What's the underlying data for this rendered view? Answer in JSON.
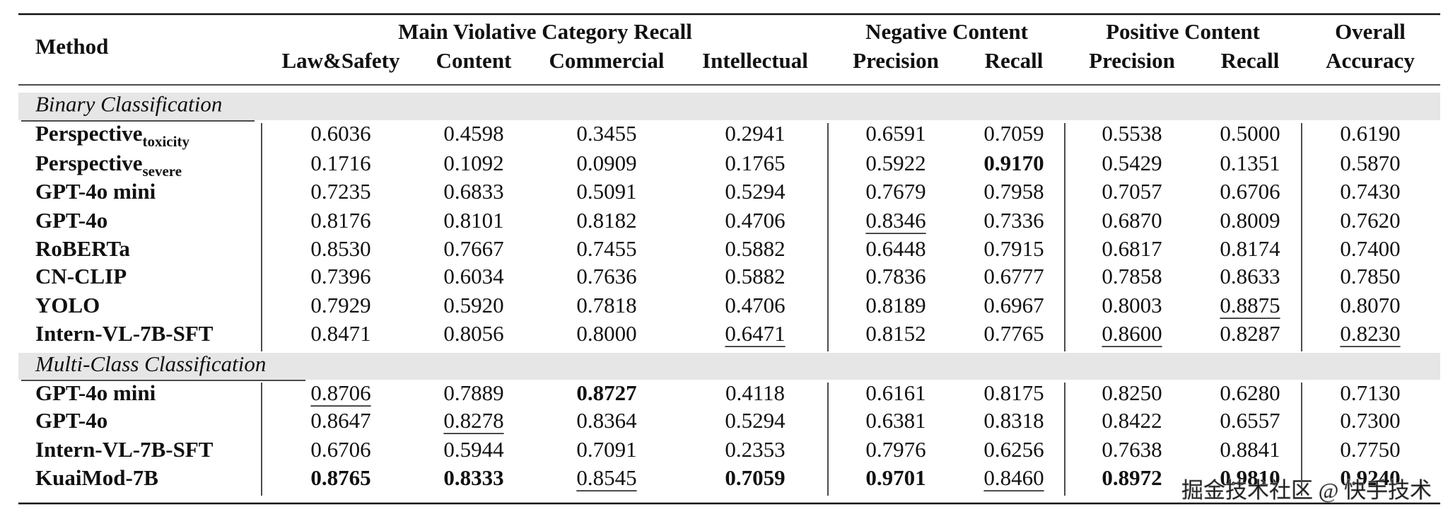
{
  "header": {
    "method": "Method",
    "groups": [
      {
        "label": "Main Violative Category Recall",
        "columns": [
          "Law&Safety",
          "Content",
          "Commercial",
          "Intellectual"
        ]
      },
      {
        "label": "Negative Content",
        "columns": [
          "Precision",
          "Recall"
        ]
      },
      {
        "label": "Positive Content",
        "columns": [
          "Precision",
          "Recall"
        ]
      },
      {
        "label": "Overall",
        "columns": [
          "Accuracy"
        ]
      }
    ]
  },
  "sections": [
    {
      "title": "Binary Classification",
      "rows": [
        {
          "method": "Perspective",
          "sub": "toxicity",
          "values": [
            "0.6036",
            "0.4598",
            "0.3455",
            "0.2941",
            "0.6591",
            "0.7059",
            "0.5538",
            "0.5000",
            "0.6190"
          ],
          "bold": [],
          "underline": []
        },
        {
          "method": "Perspective",
          "sub": "severe",
          "values": [
            "0.1716",
            "0.1092",
            "0.0909",
            "0.1765",
            "0.5922",
            "0.9170",
            "0.5429",
            "0.1351",
            "0.5870"
          ],
          "bold": [
            5
          ],
          "underline": []
        },
        {
          "method": "GPT-4o mini",
          "values": [
            "0.7235",
            "0.6833",
            "0.5091",
            "0.5294",
            "0.7679",
            "0.7958",
            "0.7057",
            "0.6706",
            "0.7430"
          ],
          "bold": [],
          "underline": []
        },
        {
          "method": "GPT-4o",
          "values": [
            "0.8176",
            "0.8101",
            "0.8182",
            "0.4706",
            "0.8346",
            "0.7336",
            "0.6870",
            "0.8009",
            "0.7620"
          ],
          "bold": [],
          "underline": [
            4
          ]
        },
        {
          "method": "RoBERTa",
          "values": [
            "0.8530",
            "0.7667",
            "0.7455",
            "0.5882",
            "0.6448",
            "0.7915",
            "0.6817",
            "0.8174",
            "0.7400"
          ],
          "bold": [],
          "underline": []
        },
        {
          "method": "CN-CLIP",
          "values": [
            "0.7396",
            "0.6034",
            "0.7636",
            "0.5882",
            "0.7836",
            "0.6777",
            "0.7858",
            "0.8633",
            "0.7850"
          ],
          "bold": [],
          "underline": []
        },
        {
          "method": "YOLO",
          "values": [
            "0.7929",
            "0.5920",
            "0.7818",
            "0.4706",
            "0.8189",
            "0.6967",
            "0.8003",
            "0.8875",
            "0.8070"
          ],
          "bold": [],
          "underline": [
            7
          ]
        },
        {
          "method": "Intern-VL-7B-SFT",
          "values": [
            "0.8471",
            "0.8056",
            "0.8000",
            "0.6471",
            "0.8152",
            "0.7765",
            "0.8600",
            "0.8287",
            "0.8230"
          ],
          "bold": [],
          "underline": [
            3,
            6,
            8
          ]
        }
      ]
    },
    {
      "title": "Multi-Class Classification",
      "rows": [
        {
          "method": "GPT-4o mini",
          "values": [
            "0.8706",
            "0.7889",
            "0.8727",
            "0.4118",
            "0.6161",
            "0.8175",
            "0.8250",
            "0.6280",
            "0.7130"
          ],
          "bold": [
            2
          ],
          "underline": [
            0
          ]
        },
        {
          "method": "GPT-4o",
          "values": [
            "0.8647",
            "0.8278",
            "0.8364",
            "0.5294",
            "0.6381",
            "0.8318",
            "0.8422",
            "0.6557",
            "0.7300"
          ],
          "bold": [],
          "underline": [
            1
          ]
        },
        {
          "method": "Intern-VL-7B-SFT",
          "values": [
            "0.6706",
            "0.5944",
            "0.7091",
            "0.2353",
            "0.7976",
            "0.6256",
            "0.7638",
            "0.8841",
            "0.7750"
          ],
          "bold": [],
          "underline": []
        },
        {
          "method": "KuaiMod-7B",
          "values": [
            "0.8765",
            "0.8333",
            "0.8545",
            "0.7059",
            "0.9701",
            "0.8460",
            "0.8972",
            "0.9810",
            "0.9240"
          ],
          "bold": [
            0,
            1,
            3,
            4,
            6,
            7,
            8
          ],
          "underline": [
            2,
            5
          ]
        }
      ]
    }
  ],
  "watermark": "掘金技术社区 @ 快手技术"
}
